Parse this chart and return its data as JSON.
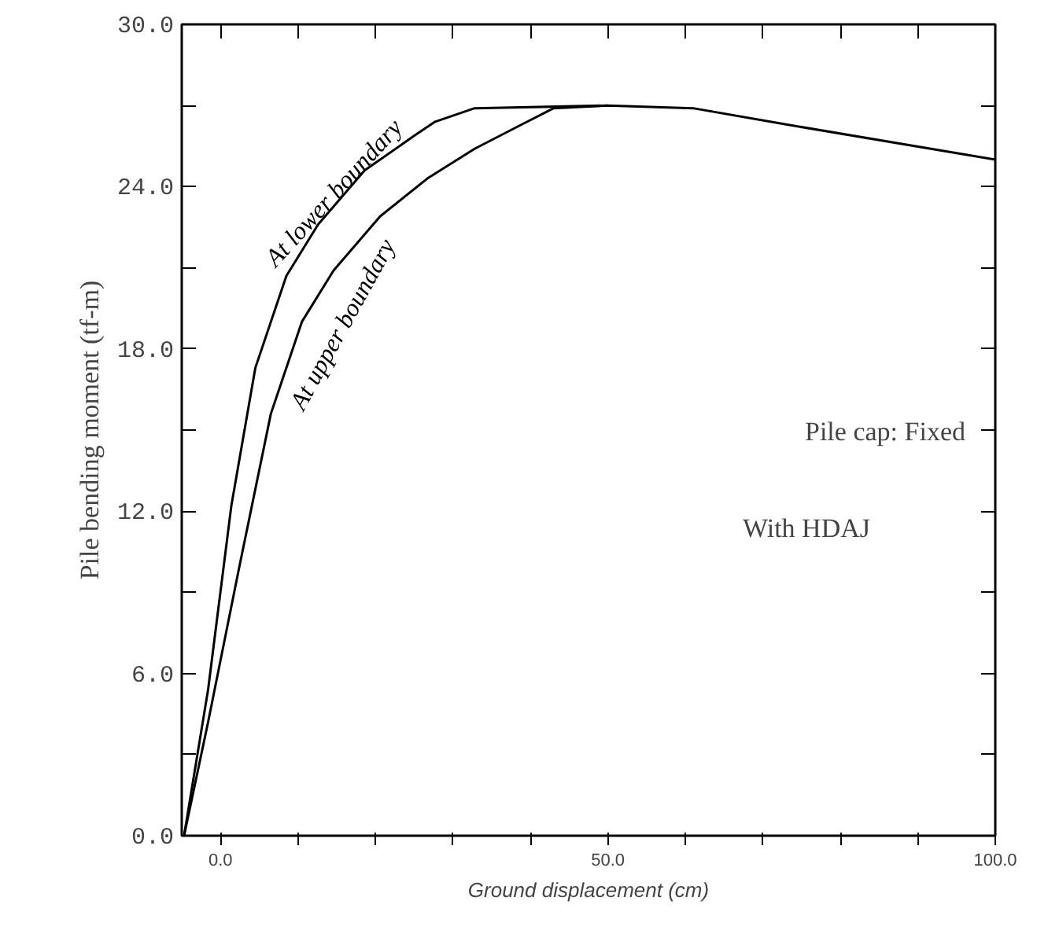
{
  "chart_data": {
    "type": "line",
    "xlabel": "Ground displacement (cm)",
    "ylabel": "Pile bending moment (tf-m)",
    "xlim": [
      -5,
      100
    ],
    "ylim": [
      0,
      30
    ],
    "xticks": [
      {
        "value": 0,
        "label": "0.0"
      },
      {
        "value": 10,
        "label": null
      },
      {
        "value": 20,
        "label": null
      },
      {
        "value": 30,
        "label": null
      },
      {
        "value": 40,
        "label": null
      },
      {
        "value": 50,
        "label": "50.0"
      },
      {
        "value": 60,
        "label": null
      },
      {
        "value": 70,
        "label": null
      },
      {
        "value": 80,
        "label": null
      },
      {
        "value": 90,
        "label": null
      },
      {
        "value": 100,
        "label": "100.0"
      }
    ],
    "yticks": [
      {
        "value": 0,
        "label": "0.0"
      },
      {
        "value": 3,
        "label": null
      },
      {
        "value": 6,
        "label": "6.0"
      },
      {
        "value": 9,
        "label": null
      },
      {
        "value": 12,
        "label": "12.0"
      },
      {
        "value": 15,
        "label": null
      },
      {
        "value": 18,
        "label": "18.0"
      },
      {
        "value": 21,
        "label": null
      },
      {
        "value": 24,
        "label": "24.0"
      },
      {
        "value": 27,
        "label": null
      },
      {
        "value": 30,
        "label": "30.0"
      }
    ],
    "grid": false,
    "marker": "none",
    "line_style": "solid",
    "series": [
      {
        "name": "At lower boundary",
        "color": "#000000",
        "x": [
          -4.7,
          -1.6,
          1.4,
          4.5,
          8.5,
          12.6,
          18.6,
          25.1,
          27.7,
          32.8,
          50,
          61,
          73,
          100
        ],
        "values": [
          0,
          5.4,
          12.2,
          17.3,
          20.7,
          22.6,
          24.6,
          25.9,
          26.4,
          26.9,
          27.0,
          26.9,
          26.3,
          25.0
        ]
      },
      {
        "name": "At upper boundary",
        "color": "#000000",
        "x": [
          -4.7,
          -1.6,
          2.4,
          6.5,
          10.5,
          14.6,
          20.6,
          26.7,
          32.8,
          38.9,
          43,
          50
        ],
        "values": [
          0,
          4.2,
          9.9,
          15.6,
          19.0,
          20.9,
          22.9,
          24.3,
          25.4,
          26.3,
          26.9,
          27.0
        ]
      }
    ],
    "annotations": [
      "Pile cap: Fixed",
      "With HDAJ"
    ]
  }
}
